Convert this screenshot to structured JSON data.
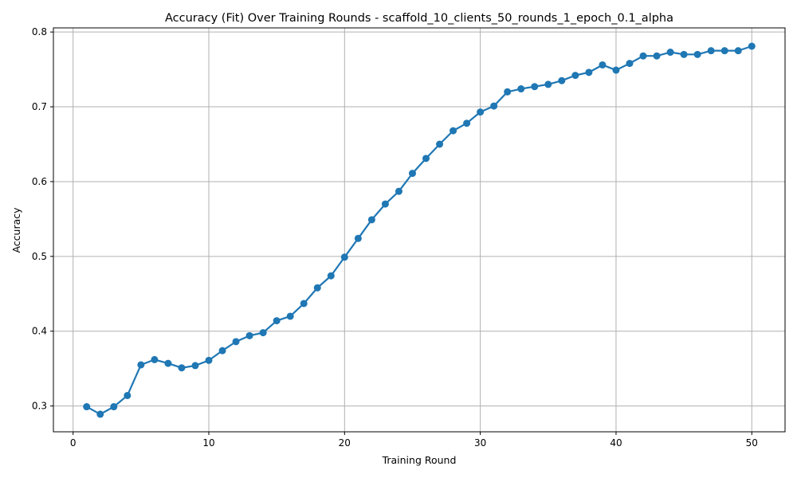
{
  "chart_data": {
    "type": "line",
    "title": "Accuracy (Fit) Over Training Rounds  - scaffold_10_clients_50_rounds_1_epoch_0.1_alpha",
    "xlabel": "Training Round",
    "ylabel": "Accuracy",
    "xlim": [
      -1.45,
      52.45
    ],
    "ylim": [
      0.2655,
      0.8055
    ],
    "xticks": [
      0,
      10,
      20,
      30,
      40,
      50
    ],
    "yticks": [
      0.3,
      0.4,
      0.5,
      0.6,
      0.7,
      0.8
    ],
    "xtick_labels": [
      "0",
      "10",
      "20",
      "30",
      "40",
      "50"
    ],
    "ytick_labels": [
      "0.3",
      "0.4",
      "0.5",
      "0.6",
      "0.7",
      "0.8"
    ],
    "grid": true,
    "color": "#1f77b4",
    "marker": "circle",
    "x": [
      1,
      2,
      3,
      4,
      5,
      6,
      7,
      8,
      9,
      10,
      11,
      12,
      13,
      14,
      15,
      16,
      17,
      18,
      19,
      20,
      21,
      22,
      23,
      24,
      25,
      26,
      27,
      28,
      29,
      30,
      31,
      32,
      33,
      34,
      35,
      36,
      37,
      38,
      39,
      40,
      41,
      42,
      43,
      44,
      45,
      46,
      47,
      48,
      49,
      50
    ],
    "y": [
      0.299,
      0.289,
      0.299,
      0.314,
      0.355,
      0.362,
      0.357,
      0.351,
      0.354,
      0.361,
      0.374,
      0.386,
      0.394,
      0.398,
      0.414,
      0.42,
      0.437,
      0.458,
      0.474,
      0.499,
      0.524,
      0.549,
      0.57,
      0.587,
      0.611,
      0.631,
      0.65,
      0.668,
      0.678,
      0.693,
      0.701,
      0.72,
      0.724,
      0.727,
      0.73,
      0.735,
      0.742,
      0.746,
      0.756,
      0.749,
      0.758,
      0.768,
      0.768,
      0.773,
      0.77,
      0.77,
      0.775,
      0.775,
      0.775,
      0.781
    ]
  }
}
